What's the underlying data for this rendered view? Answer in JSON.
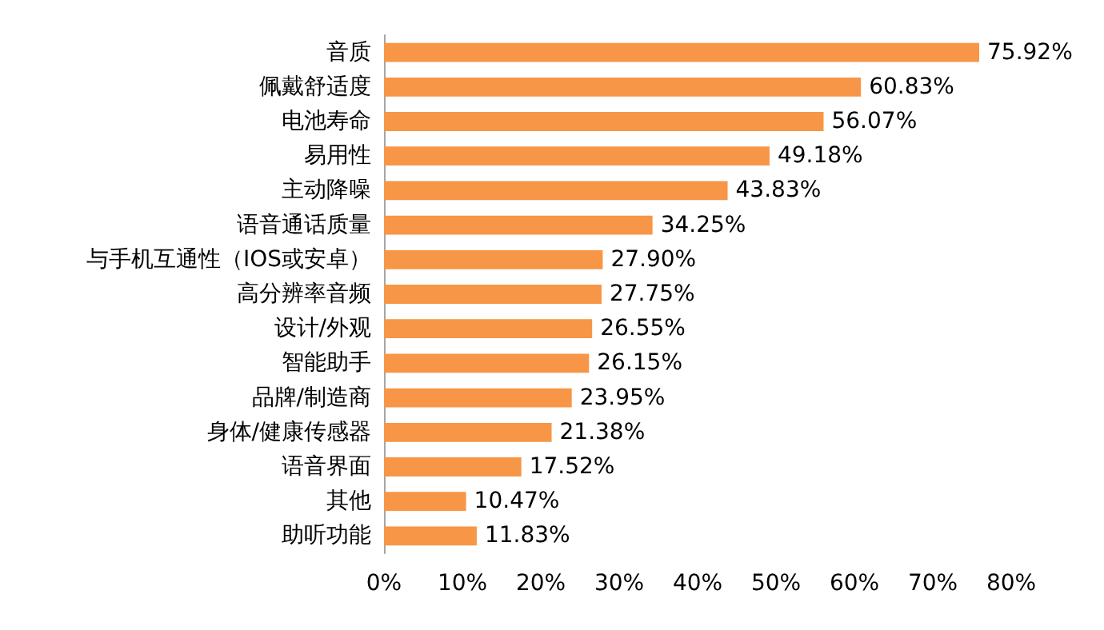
{
  "chart_data": {
    "type": "bar",
    "orientation": "horizontal",
    "categories": [
      "音质",
      "佩戴舒适度",
      "电池寿命",
      "易用性",
      "主动降噪",
      "语音通话质量",
      "与手机互通性（IOS或安卓）",
      "高分辨率音频",
      "设计/外观",
      "智能助手",
      "品牌/制造商",
      "身体/健康传感器",
      "语音界面",
      "其他",
      "助听功能"
    ],
    "values": [
      75.92,
      60.83,
      56.07,
      49.18,
      43.83,
      34.25,
      27.9,
      27.75,
      26.55,
      26.15,
      23.95,
      21.38,
      17.52,
      10.47,
      11.83
    ],
    "value_labels": [
      "75.92%",
      "60.83%",
      "56.07%",
      "49.18%",
      "43.83%",
      "34.25%",
      "27.90%",
      "27.75%",
      "26.55%",
      "26.15%",
      "23.95%",
      "21.38%",
      "17.52%",
      "10.47%",
      "11.83%"
    ],
    "color": "#f79646",
    "xlim": [
      0,
      80
    ],
    "xticks": [
      {
        "value": 0,
        "label": "0%"
      },
      {
        "value": 10,
        "label": "10%"
      },
      {
        "value": 20,
        "label": "20%"
      },
      {
        "value": 30,
        "label": "30%"
      },
      {
        "value": 40,
        "label": "40%"
      },
      {
        "value": 50,
        "label": "50%"
      },
      {
        "value": 60,
        "label": "60%"
      },
      {
        "value": 70,
        "label": "70%"
      },
      {
        "value": 80,
        "label": "80%"
      }
    ],
    "grid": false
  }
}
